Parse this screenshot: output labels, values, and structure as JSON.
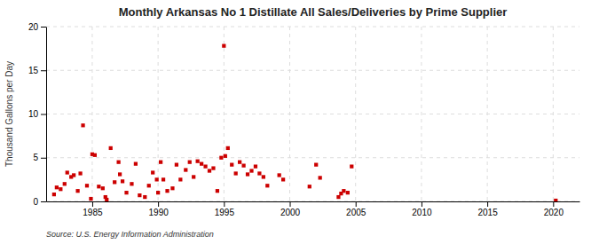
{
  "chart_data": {
    "type": "scatter",
    "title": "Monthly Arkansas No 1 Distillate All Sales/Deliveries by Prime Supplier",
    "ylabel": "Thousand Gallons per Day",
    "annotations": [
      "Source: U.S. Energy Information Administration"
    ],
    "color": "#cc0000",
    "marker": "square",
    "grid": true,
    "xlim": [
      1981.5,
      2022
    ],
    "ylim": [
      0,
      20
    ],
    "xticks": [
      1985,
      1990,
      1995,
      2000,
      2005,
      2010,
      2015,
      2020
    ],
    "yticks": [
      0,
      5,
      10,
      15,
      20
    ],
    "x": [
      1982.1,
      1982.3,
      1982.6,
      1982.9,
      1983.1,
      1983.4,
      1983.6,
      1983.9,
      1984.1,
      1984.3,
      1984.6,
      1984.9,
      1985.0,
      1985.2,
      1985.5,
      1985.8,
      1986.0,
      1986.1,
      1986.4,
      1986.7,
      1987.0,
      1987.1,
      1987.3,
      1987.6,
      1988.0,
      1988.3,
      1988.6,
      1989.0,
      1989.3,
      1989.6,
      1989.9,
      1990.0,
      1990.2,
      1990.4,
      1990.7,
      1991.1,
      1991.4,
      1991.7,
      1992.1,
      1992.4,
      1992.7,
      1993.0,
      1993.3,
      1993.6,
      1993.9,
      1994.2,
      1994.5,
      1994.8,
      1995.0,
      1995.1,
      1995.3,
      1995.6,
      1995.9,
      1996.2,
      1996.5,
      1996.8,
      1997.1,
      1997.4,
      1997.7,
      1998.0,
      1998.3,
      1999.2,
      1999.5,
      2001.5,
      2002.0,
      2002.3,
      2003.7,
      2003.9,
      2004.1,
      2004.4,
      2004.7,
      2020.2
    ],
    "values": [
      0.8,
      1.6,
      1.4,
      2.0,
      3.3,
      2.8,
      3.0,
      1.2,
      3.2,
      8.7,
      1.8,
      0.3,
      5.4,
      5.3,
      1.7,
      1.5,
      0.5,
      0.2,
      6.1,
      2.2,
      4.5,
      3.1,
      2.3,
      1.0,
      2.0,
      4.3,
      0.7,
      0.5,
      1.8,
      3.3,
      2.5,
      1.0,
      4.5,
      2.5,
      1.2,
      1.5,
      4.2,
      2.5,
      3.6,
      4.5,
      2.8,
      4.6,
      4.3,
      4.0,
      3.5,
      3.8,
      1.2,
      5.0,
      17.8,
      5.2,
      6.1,
      4.2,
      3.2,
      4.5,
      4.1,
      3.1,
      3.5,
      4.0,
      3.2,
      2.8,
      1.8,
      3.0,
      2.5,
      1.7,
      4.2,
      2.7,
      0.5,
      0.9,
      1.2,
      1.0,
      4.0,
      0.1
    ]
  }
}
